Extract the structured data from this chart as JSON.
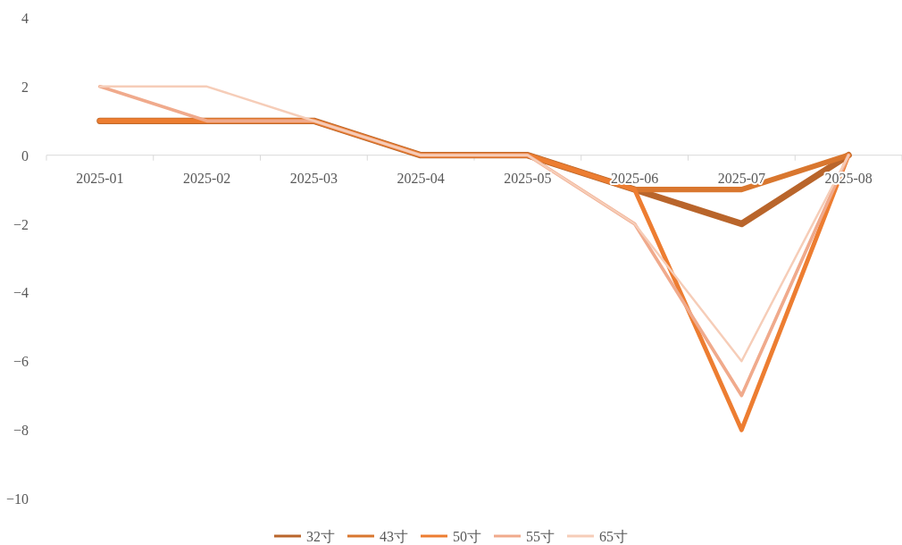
{
  "chart_data": {
    "type": "line",
    "categories": [
      "2025-01",
      "2025-02",
      "2025-03",
      "2025-04",
      "2025-05",
      "2025-06",
      "2025-07",
      "2025-08"
    ],
    "series": [
      {
        "name": "32寸",
        "color": "#b9652b",
        "values": [
          1,
          1,
          1,
          0,
          0,
          -1,
          -2,
          0
        ]
      },
      {
        "name": "43寸",
        "color": "#d9772f",
        "values": [
          1,
          1,
          1,
          0,
          0,
          -1,
          -1,
          0
        ]
      },
      {
        "name": "50寸",
        "color": "#ed7d31",
        "values": [
          1,
          1,
          1,
          0,
          0,
          -1,
          -8,
          0
        ]
      },
      {
        "name": "55寸",
        "color": "#f0aa8c",
        "values": [
          2,
          1,
          1,
          0,
          0,
          -2,
          -7,
          0
        ]
      },
      {
        "name": "65寸",
        "color": "#f6cdb8",
        "values": [
          2,
          2,
          1,
          0,
          0,
          -2,
          -6,
          0
        ]
      }
    ],
    "ylim": [
      -10,
      4
    ],
    "yticks": [
      -10,
      -8,
      -6,
      -4,
      -2,
      0,
      2,
      4
    ],
    "legend": "bottom"
  }
}
